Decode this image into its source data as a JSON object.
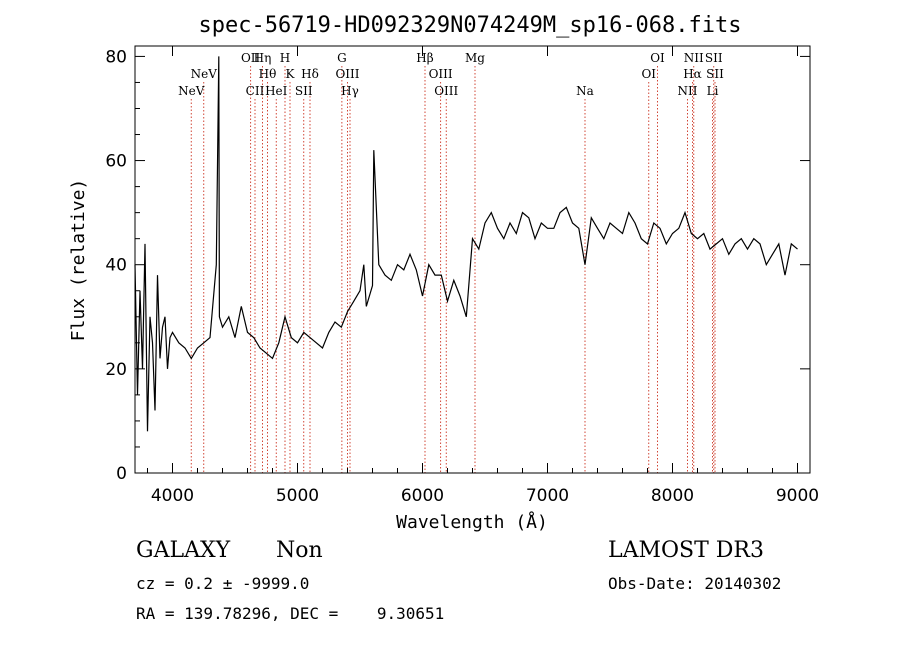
{
  "chart_data": {
    "type": "line",
    "title": "spec-56719-HD092329N074249M_sp16-068.fits",
    "xlabel": "Wavelength (Å)",
    "ylabel": "Flux (relative)",
    "xlim": [
      3700,
      9100
    ],
    "ylim": [
      0,
      82
    ],
    "xticks": [
      4000,
      5000,
      6000,
      7000,
      8000,
      9000
    ],
    "yticks": [
      0,
      20,
      40,
      60,
      80
    ],
    "series": [
      {
        "name": "flux",
        "x": [
          3700,
          3720,
          3740,
          3760,
          3780,
          3800,
          3820,
          3840,
          3860,
          3880,
          3900,
          3920,
          3940,
          3960,
          3980,
          4000,
          4050,
          4100,
          4150,
          4200,
          4250,
          4300,
          4350,
          4370,
          4375,
          4400,
          4450,
          4500,
          4550,
          4600,
          4650,
          4700,
          4750,
          4800,
          4850,
          4900,
          4950,
          5000,
          5050,
          5100,
          5150,
          5200,
          5250,
          5300,
          5350,
          5400,
          5450,
          5500,
          5530,
          5550,
          5600,
          5610,
          5650,
          5700,
          5750,
          5800,
          5850,
          5900,
          5950,
          6000,
          6050,
          6100,
          6150,
          6200,
          6250,
          6300,
          6350,
          6400,
          6450,
          6500,
          6550,
          6600,
          6650,
          6700,
          6750,
          6800,
          6850,
          6900,
          6950,
          7000,
          7050,
          7100,
          7150,
          7200,
          7250,
          7300,
          7350,
          7400,
          7450,
          7500,
          7550,
          7600,
          7650,
          7700,
          7750,
          7800,
          7850,
          7900,
          7950,
          8000,
          8050,
          8100,
          8150,
          8200,
          8250,
          8300,
          8350,
          8400,
          8450,
          8500,
          8550,
          8600,
          8650,
          8700,
          8750,
          8800,
          8850,
          8900,
          8950,
          9000
        ],
        "y": [
          40,
          15,
          35,
          20,
          44,
          8,
          30,
          25,
          12,
          38,
          22,
          28,
          30,
          20,
          26,
          27,
          25,
          24,
          22,
          24,
          25,
          26,
          40,
          80,
          30,
          28,
          30,
          26,
          32,
          27,
          26,
          24,
          23,
          22,
          25,
          30,
          26,
          25,
          27,
          26,
          25,
          24,
          27,
          29,
          28,
          31,
          33,
          35,
          40,
          32,
          36,
          62,
          40,
          38,
          37,
          40,
          39,
          42,
          39,
          34,
          40,
          38,
          38,
          33,
          37,
          34,
          30,
          45,
          43,
          48,
          50,
          47,
          45,
          48,
          46,
          50,
          49,
          45,
          48,
          47,
          47,
          50,
          51,
          48,
          47,
          40,
          49,
          47,
          45,
          48,
          47,
          46,
          50,
          48,
          45,
          44,
          48,
          47,
          44,
          46,
          47,
          50,
          46,
          45,
          46,
          43,
          44,
          45,
          42,
          44,
          45,
          43,
          45,
          44,
          40,
          42,
          44,
          38,
          44,
          43
        ]
      }
    ],
    "lines": [
      {
        "label": "NeV",
        "wl": 4150,
        "row": 3
      },
      {
        "label": "NeV",
        "wl": 4250,
        "row": 2
      },
      {
        "label": "OII",
        "wl": 4625,
        "row": 1
      },
      {
        "label": "CII",
        "wl": 4660,
        "row": 3
      },
      {
        "label": "Hη",
        "wl": 4720,
        "row": 1
      },
      {
        "label": "Hθ",
        "wl": 4760,
        "row": 2
      },
      {
        "label": "HeI",
        "wl": 4830,
        "row": 3
      },
      {
        "label": "H",
        "wl": 4900,
        "row": 1
      },
      {
        "label": "K",
        "wl": 4940,
        "row": 2
      },
      {
        "label": "SII",
        "wl": 5050,
        "row": 3
      },
      {
        "label": "Hδ",
        "wl": 5100,
        "row": 2
      },
      {
        "label": "G",
        "wl": 5355,
        "row": 1
      },
      {
        "label": "OIII",
        "wl": 5400,
        "row": 2
      },
      {
        "label": "Hγ",
        "wl": 5420,
        "row": 3
      },
      {
        "label": "Hβ",
        "wl": 6020,
        "row": 1
      },
      {
        "label": "OIII",
        "wl": 6145,
        "row": 2
      },
      {
        "label": "OIII",
        "wl": 6190,
        "row": 3
      },
      {
        "label": "Mg",
        "wl": 6420,
        "row": 1
      },
      {
        "label": "Na",
        "wl": 7300,
        "row": 3
      },
      {
        "label": "OI",
        "wl": 7810,
        "row": 2
      },
      {
        "label": "OI",
        "wl": 7880,
        "row": 1
      },
      {
        "label": "NII",
        "wl": 8120,
        "row": 3
      },
      {
        "label": "Hα",
        "wl": 8160,
        "row": 2
      },
      {
        "label": "NII",
        "wl": 8170,
        "row": 1
      },
      {
        "label": "SII",
        "wl": 8330,
        "row": 1
      },
      {
        "label": "SII",
        "wl": 8340,
        "row": 2
      },
      {
        "label": "Li",
        "wl": 8320,
        "row": 3
      }
    ]
  },
  "info": {
    "class": "GALAXY",
    "subclass": "Non",
    "survey": "LAMOST DR3",
    "cz": "cz = 0.2 ± -9999.0",
    "obsdate": "Obs-Date: 20140302",
    "radec": "RA = 139.78296, DEC =    9.30651"
  },
  "colors": {
    "line_marker": "#cc3322",
    "spectrum": "#000000"
  }
}
